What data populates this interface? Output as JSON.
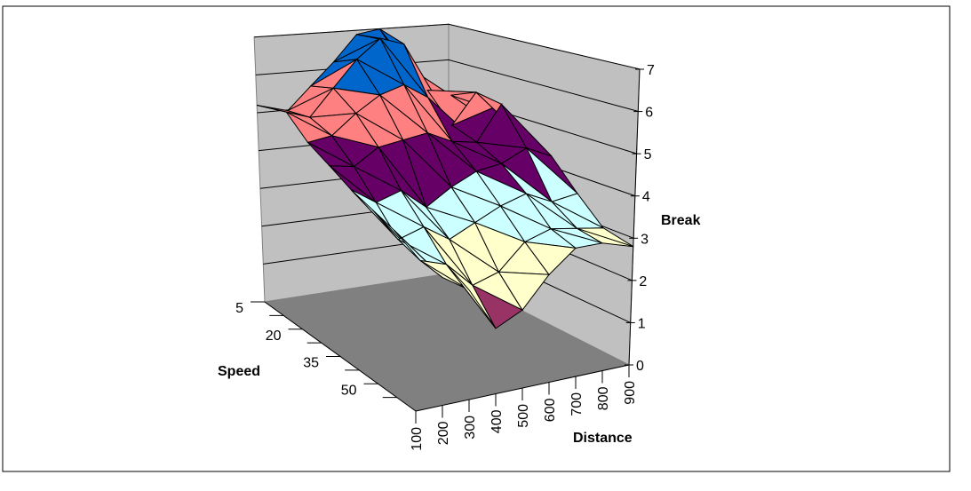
{
  "chart_data": {
    "type": "surface",
    "title": "",
    "xlabel": "Distance",
    "ylabel": "Speed",
    "zlabel": "Break",
    "x_ticks": [
      "100",
      "200",
      "300",
      "400",
      "500",
      "600",
      "700",
      "800",
      "900"
    ],
    "y_tick_labels": [
      "5",
      "",
      "20",
      "",
      "35",
      "",
      "50",
      ""
    ],
    "z_ticks": [
      "0",
      "1",
      "2",
      "3",
      "4",
      "5",
      "6",
      "7"
    ],
    "zlim": [
      0,
      7
    ],
    "band_colors": [
      "#9999FF",
      "#993366",
      "#FFFFCC",
      "#CCFFFF",
      "#660066",
      "#FF8080",
      "#0066CC",
      "#CCCCFF"
    ],
    "wall_color": "#C0C0C0",
    "floor_color": "#808080",
    "values_estimated": [
      [
        5.2,
        5.0,
        5.6,
        6.2,
        6.9,
        7.0,
        6.0,
        5.0,
        4.6
      ],
      [
        5.3,
        5.1,
        5.8,
        6.5,
        7.0,
        6.8,
        5.5,
        5.3,
        4.8
      ],
      [
        4.8,
        4.9,
        5.4,
        5.8,
        6.0,
        5.6,
        4.8,
        5.6,
        5.0
      ],
      [
        4.5,
        4.4,
        4.8,
        4.9,
        5.0,
        4.7,
        4.6,
        5.5,
        4.5
      ],
      [
        4.2,
        3.8,
        4.0,
        3.5,
        3.9,
        4.2,
        4.3,
        4.6,
        4.3
      ],
      [
        4.0,
        3.2,
        3.4,
        3.0,
        3.3,
        3.6,
        3.8,
        3.5,
        3.6
      ],
      [
        3.8,
        3.0,
        2.8,
        2.2,
        2.4,
        3.0,
        3.2,
        3.1,
        3.0
      ],
      [
        3.6,
        2.9,
        2.5,
        1.5,
        1.8,
        2.5,
        3.0,
        3.0,
        2.8
      ]
    ]
  }
}
